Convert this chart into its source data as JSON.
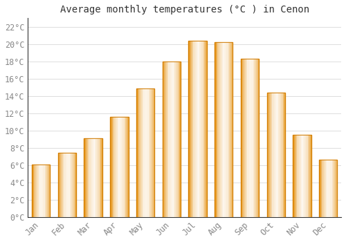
{
  "title": "Average monthly temperatures (°C ) in Cenon",
  "months": [
    "Jan",
    "Feb",
    "Mar",
    "Apr",
    "May",
    "Jun",
    "Jul",
    "Aug",
    "Sep",
    "Oct",
    "Nov",
    "Dec"
  ],
  "temperatures": [
    6.1,
    7.4,
    9.1,
    11.6,
    14.9,
    18.0,
    20.4,
    20.2,
    18.3,
    14.4,
    9.5,
    6.6
  ],
  "bar_color_center": "#FFD55A",
  "bar_color_edge": "#E8900A",
  "background_color": "#FFFFFF",
  "grid_color": "#DDDDDD",
  "text_color": "#888888",
  "spine_color": "#333333",
  "title_color": "#333333",
  "ylim": [
    0,
    23
  ],
  "yticks": [
    0,
    2,
    4,
    6,
    8,
    10,
    12,
    14,
    16,
    18,
    20,
    22
  ],
  "title_fontsize": 10,
  "tick_fontsize": 8.5
}
